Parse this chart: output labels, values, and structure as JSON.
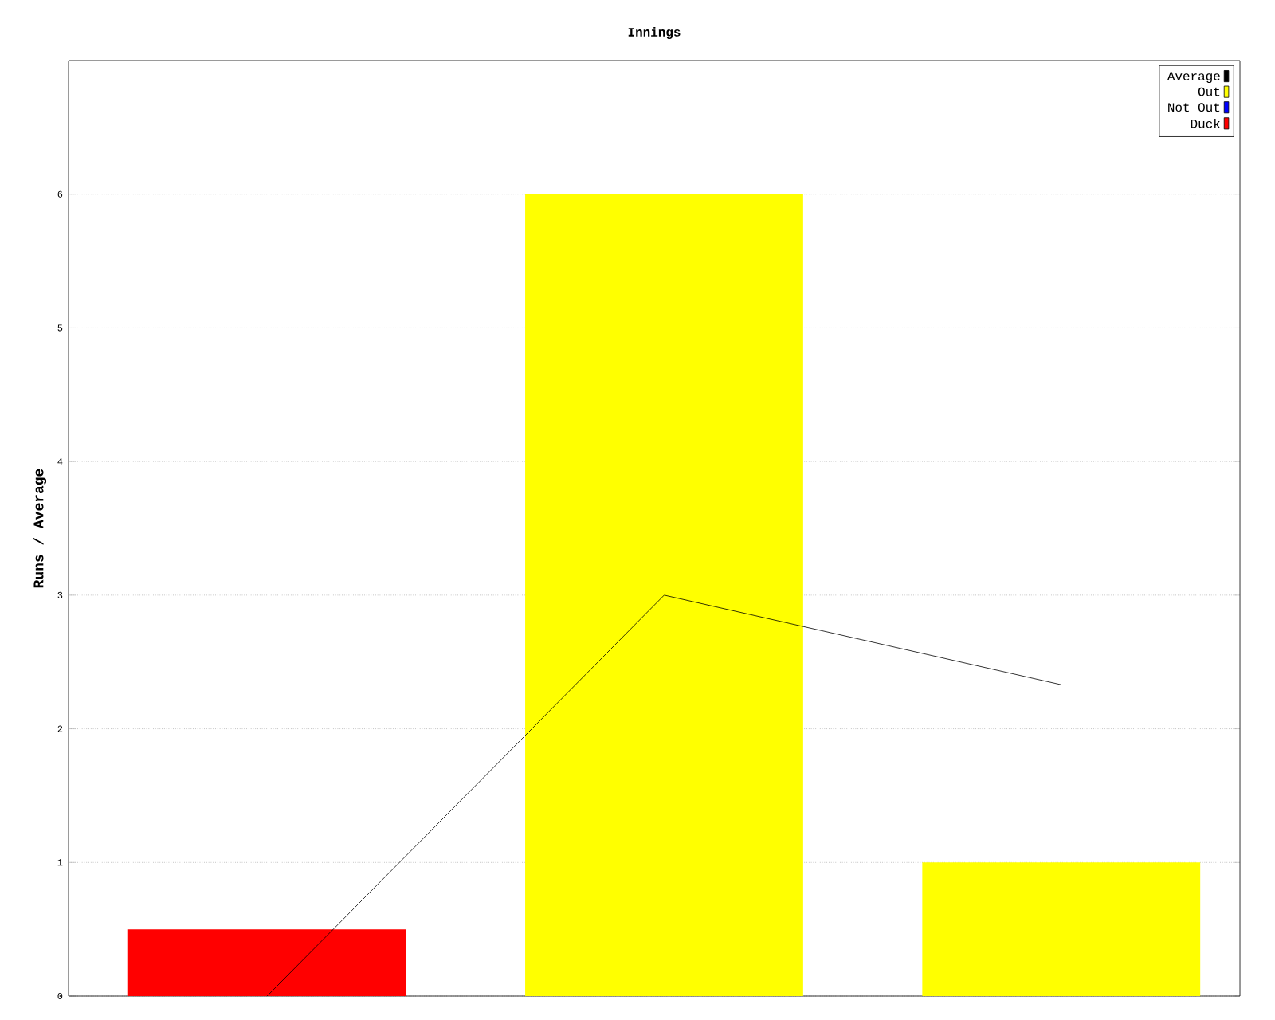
{
  "chart_data": {
    "type": "bar",
    "title": "Innings",
    "ylabel": "Runs / Average",
    "categories": [
      null,
      null,
      null
    ],
    "series": [
      {
        "name": "Average",
        "type": "line",
        "color": "#000000",
        "values": [
          0,
          3,
          2.33
        ]
      },
      {
        "name": "Out",
        "color": "#ffff00",
        "values": [
          null,
          6,
          1
        ]
      },
      {
        "name": "Not Out",
        "color": "#0000ff",
        "values": [
          null,
          null,
          null
        ]
      },
      {
        "name": "Duck",
        "color": "#ff0000",
        "values": [
          0.5,
          null,
          null
        ]
      }
    ],
    "ylim": [
      0,
      7
    ],
    "yticks": [
      0,
      1,
      2,
      3,
      4,
      5,
      6
    ],
    "grid": "y",
    "legend": "top right",
    "tick_labels": "y",
    "marker": "none",
    "line_style": "solid"
  }
}
